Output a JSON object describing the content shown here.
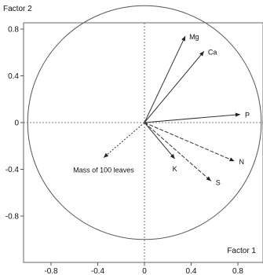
{
  "chart_data": {
    "type": "scatter",
    "subtype": "correlation-circle",
    "title": "",
    "xlabel": "Factor 1",
    "ylabel": "Factor 2",
    "xlim": [
      -1.0,
      1.0
    ],
    "ylim": [
      -1.0,
      1.0
    ],
    "xticks": [
      -0.8,
      -0.4,
      0,
      0.4,
      0.8
    ],
    "yticks": [
      -0.8,
      -0.4,
      0,
      0.4,
      0.8
    ],
    "xtick_labels": [
      "-0.8",
      "-0.4",
      "0",
      "0.4",
      "0.8"
    ],
    "ytick_labels": [
      "-0.8",
      "-0.4",
      "0",
      "0.4",
      "0.8"
    ],
    "unit_circle": true,
    "grid": false,
    "reference_lines": [
      "x=0",
      "y=0"
    ],
    "series": [
      {
        "name": "Mg",
        "x": 0.35,
        "y": 0.74,
        "style": "solid"
      },
      {
        "name": "Ca",
        "x": 0.51,
        "y": 0.61,
        "style": "solid"
      },
      {
        "name": "P",
        "x": 0.82,
        "y": 0.07,
        "style": "solid"
      },
      {
        "name": "N",
        "x": 0.77,
        "y": -0.33,
        "style": "dashed"
      },
      {
        "name": "S",
        "x": 0.57,
        "y": -0.5,
        "style": "dashed"
      },
      {
        "name": "K",
        "x": 0.26,
        "y": -0.31,
        "style": "solid"
      },
      {
        "name": "Mass of 100 leaves",
        "x": -0.35,
        "y": -0.3,
        "style": "dotted"
      }
    ]
  }
}
